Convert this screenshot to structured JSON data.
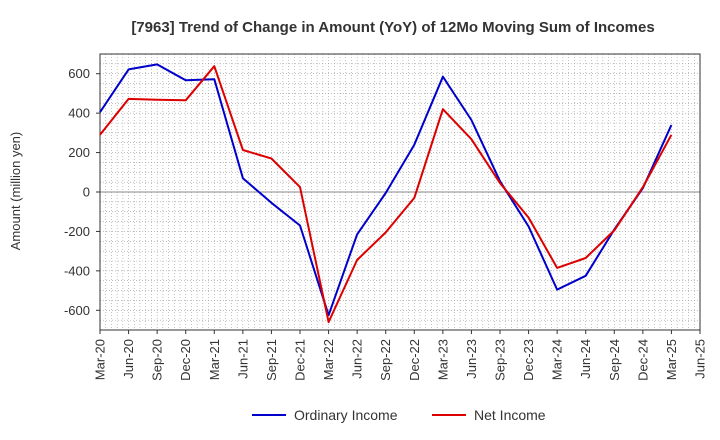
{
  "chart_data": {
    "type": "line",
    "title": "[7963]  Trend of Change in Amount (YoY) of 12Mo Moving Sum of Incomes",
    "xlabel": "",
    "ylabel": "Amount (million yen)",
    "ylim": [
      -700,
      700
    ],
    "yticks": [
      600,
      400,
      200,
      0,
      -200,
      -400,
      -600
    ],
    "categories": [
      "Mar-20",
      "Jun-20",
      "Sep-20",
      "Dec-20",
      "Mar-21",
      "Jun-21",
      "Sep-21",
      "Dec-21",
      "Mar-22",
      "Jun-22",
      "Sep-22",
      "Dec-22",
      "Mar-23",
      "Jun-23",
      "Sep-23",
      "Dec-23",
      "Mar-24",
      "Jun-24",
      "Sep-24",
      "Dec-24",
      "Mar-25",
      "Jun-25"
    ],
    "grid": true,
    "legend_position": "bottom",
    "series": [
      {
        "name": "Ordinary Income",
        "color": "#0000cc",
        "values": [
          405,
          622,
          647,
          567,
          572,
          70,
          -55,
          -170,
          -625,
          -215,
          -5,
          240,
          585,
          365,
          55,
          -175,
          -495,
          -425,
          -190,
          20,
          340,
          null
        ]
      },
      {
        "name": "Net Income",
        "color": "#dd0000",
        "values": [
          290,
          472,
          468,
          465,
          638,
          213,
          170,
          25,
          -660,
          -345,
          -205,
          -30,
          420,
          268,
          45,
          -130,
          -385,
          -335,
          -195,
          25,
          290,
          null
        ]
      }
    ]
  }
}
